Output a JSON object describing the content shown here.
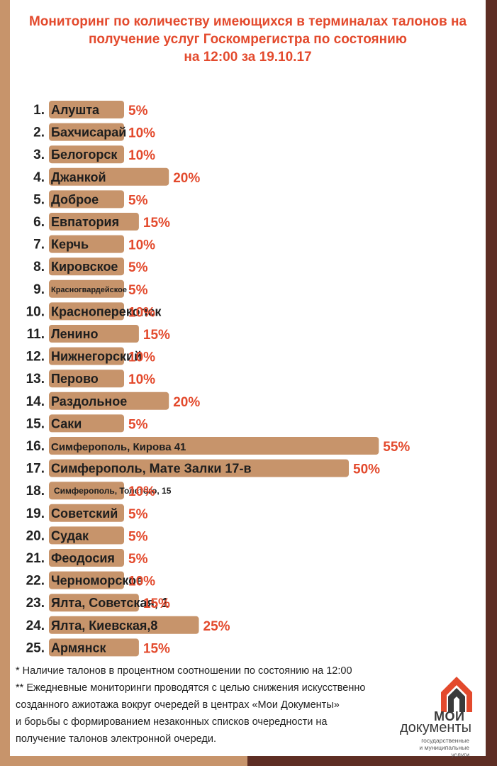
{
  "header": {
    "title_lines": [
      "Мониторинг по количеству имеющихся в терминалах талонов на",
      "получение услуг Госкомрегистра по состоянию",
      "на 12:00 за 19.10.17"
    ]
  },
  "chart_data": {
    "type": "bar",
    "orientation": "horizontal",
    "unit": "%",
    "colors": {
      "bar": "#c7946b",
      "number": "#222222",
      "value_label": "#e34a2d"
    },
    "rows": [
      {
        "n": "1.",
        "label": "Алушта",
        "value": 5,
        "value_label": "5%"
      },
      {
        "n": "2.",
        "label": "Бахчисарай",
        "value": 10,
        "value_label": "10%"
      },
      {
        "n": "3.",
        "label": "Белогорск",
        "value": 10,
        "value_label": "10%"
      },
      {
        "n": "4.",
        "label": "Джанкой",
        "value": 20,
        "value_label": "20%"
      },
      {
        "n": "5.",
        "label": "Доброе",
        "value": 5,
        "value_label": "5%"
      },
      {
        "n": "6.",
        "label": "Евпатория",
        "value": 15,
        "value_label": "15%"
      },
      {
        "n": "7.",
        "label": "Керчь",
        "value": 10,
        "value_label": "10%"
      },
      {
        "n": "8.",
        "label": "Кировское",
        "value": 5,
        "value_label": "5%"
      },
      {
        "n": "9.",
        "label": "Красногвардейское",
        "value": 5,
        "value_label": "5%"
      },
      {
        "n": "10.",
        "label": "Красноперекопск",
        "value": 10,
        "value_label": "10%"
      },
      {
        "n": "11.",
        "label": "Ленино",
        "value": 15,
        "value_label": "15%"
      },
      {
        "n": "12.",
        "label": "Нижнегорский",
        "value": 10,
        "value_label": "10%"
      },
      {
        "n": "13.",
        "label": "Перово",
        "value": 10,
        "value_label": "10%"
      },
      {
        "n": "14.",
        "label": "Раздольное",
        "value": 20,
        "value_label": "20%"
      },
      {
        "n": "15.",
        "label": "Саки",
        "value": 5,
        "value_label": "5%"
      },
      {
        "n": "16.",
        "label": "Симферополь, Кирова 41",
        "value": 55,
        "value_label": "55%"
      },
      {
        "n": "17.",
        "label": "Симферополь, Мате Залки 17-в",
        "value": 50,
        "value_label": "50%"
      },
      {
        "n": "18.",
        "label": "Симферополь, Толстого, 15",
        "value": 10,
        "value_label": "10%"
      },
      {
        "n": "19.",
        "label": "Советский",
        "value": 5,
        "value_label": "5%"
      },
      {
        "n": "20.",
        "label": "Судак",
        "value": 5,
        "value_label": "5%"
      },
      {
        "n": "21.",
        "label": "Феодосия",
        "value": 5,
        "value_label": "5%"
      },
      {
        "n": "22.",
        "label": "Черноморское",
        "value": 10,
        "value_label": "10%"
      },
      {
        "n": "23.",
        "label": "Ялта, Советская, 1",
        "value": 15,
        "value_label": "15%"
      },
      {
        "n": "24.",
        "label": "Ялта, Киевская,8",
        "value": 25,
        "value_label": "25%"
      },
      {
        "n": "25.",
        "label": "Армянск",
        "value": 15,
        "value_label": "15%"
      }
    ]
  },
  "footnotes": {
    "line1": "* Наличие талонов в процентном соотношении по состоянию на 12:00",
    "line2": "** Ежедневные мониторинги проводятся с целью снижения искусственно",
    "line3": "созданного ажиотажа вокруг очередей в центрах «Мои Документы»",
    "line4": "и борьбы с формированием незаконных списков очередности на",
    "line5": "получение талонов электронной очереди."
  },
  "logo": {
    "icon": "moi-dokumenty-logo-icon",
    "line1": "МОИ",
    "line2": "документы",
    "line3": "государственные",
    "line4": "и муниципальные услуги",
    "colors": {
      "red": "#e34a2d",
      "dark": "#3a3a3a"
    }
  }
}
